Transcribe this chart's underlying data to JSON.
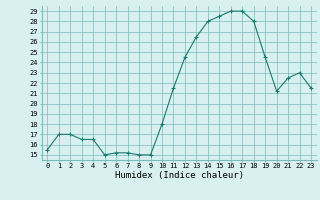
{
  "x": [
    0,
    1,
    2,
    3,
    4,
    5,
    6,
    7,
    8,
    9,
    10,
    11,
    12,
    13,
    14,
    15,
    16,
    17,
    18,
    19,
    20,
    21,
    22,
    23
  ],
  "y": [
    15.5,
    17.0,
    17.0,
    16.5,
    16.5,
    15.0,
    15.2,
    15.2,
    15.0,
    15.0,
    18.0,
    21.5,
    24.5,
    26.5,
    28.0,
    28.5,
    29.0,
    29.0,
    28.0,
    24.5,
    21.2,
    22.5,
    23.0,
    21.5
  ],
  "xlabel": "Humidex (Indice chaleur)",
  "xlim": [
    -0.5,
    23.5
  ],
  "ylim": [
    14.5,
    29.5
  ],
  "yticks": [
    15,
    16,
    17,
    18,
    19,
    20,
    21,
    22,
    23,
    24,
    25,
    26,
    27,
    28,
    29
  ],
  "xticks": [
    0,
    1,
    2,
    3,
    4,
    5,
    6,
    7,
    8,
    9,
    10,
    11,
    12,
    13,
    14,
    15,
    16,
    17,
    18,
    19,
    20,
    21,
    22,
    23
  ],
  "line_color": "#1a7a6e",
  "marker": "+",
  "bg_color": "#d9f0f0",
  "grid_color": "#7bbcbc",
  "tick_label_fontsize": 5.0,
  "xlabel_fontsize": 6.5
}
